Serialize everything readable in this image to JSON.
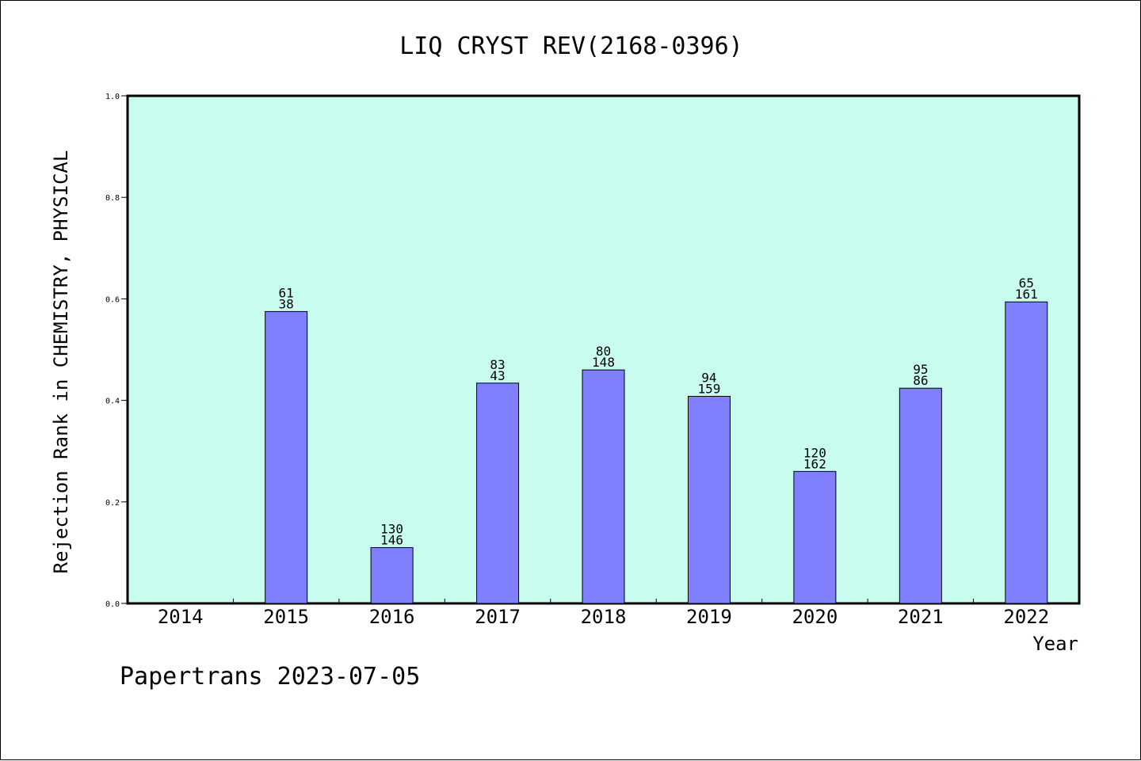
{
  "chart_data": {
    "type": "bar",
    "title": "LIQ CRYST REV(2168-0396)",
    "ylabel": "Rejection Rank in CHEMISTRY, PHYSICAL",
    "xlabel": "Year",
    "ylim": [
      0,
      1.0
    ],
    "yticks": [
      "0.0",
      "0.2",
      "0.4",
      "0.6",
      "0.8",
      "1.0"
    ],
    "categories": [
      "2014",
      "2015",
      "2016",
      "2017",
      "2018",
      "2019",
      "2020",
      "2021",
      "2022"
    ],
    "values": [
      0,
      0.575,
      0.11,
      0.434,
      0.46,
      0.408,
      0.26,
      0.424,
      0.594
    ],
    "labels_top": [
      "",
      "61",
      "130",
      "83",
      "80",
      "94",
      "120",
      "95",
      "65"
    ],
    "labels_bottom": [
      "",
      "38",
      "146",
      "43",
      "148",
      "159",
      "162",
      "86",
      "161"
    ],
    "grid": false,
    "colors": {
      "plot_bg": "#c8fcee",
      "bar": "#8080ff",
      "bar_edge": "#000000"
    }
  },
  "footer": "Papertrans 2023-07-05"
}
